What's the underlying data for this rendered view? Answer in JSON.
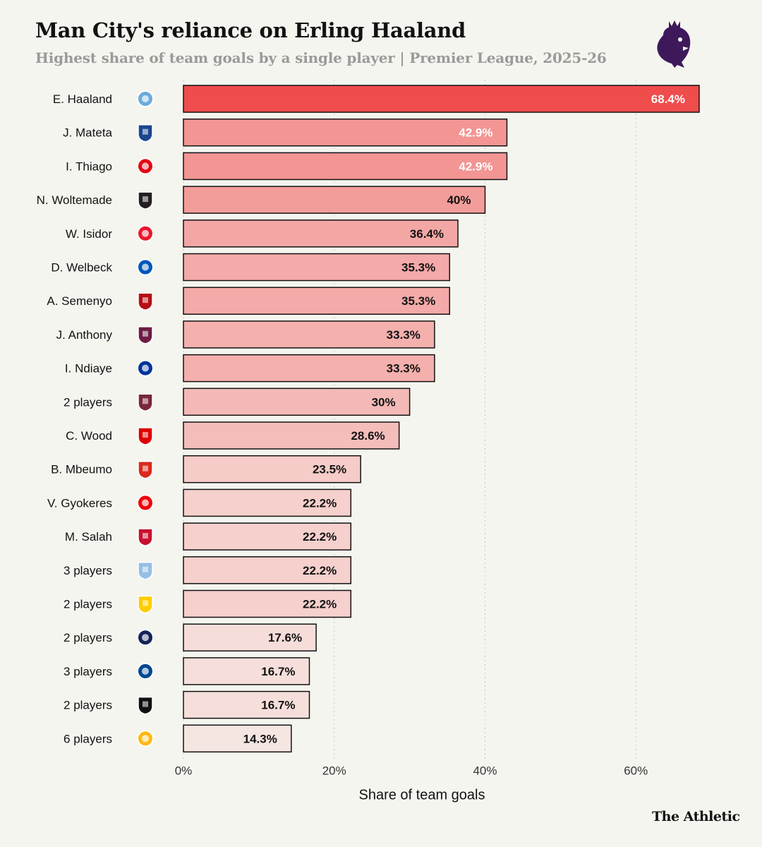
{
  "header": {
    "title": "Man City's reliance on Erling Haaland",
    "subtitle": "Highest share of team goals by a single player | Premier League, 2025-26",
    "logo_icon": "premier-league-lion-icon"
  },
  "chart_data": {
    "type": "bar",
    "orientation": "horizontal",
    "title": "Man City's reliance on Erling Haaland",
    "subtitle": "Highest share of team goals by a single player | Premier League, 2025-26",
    "xlabel": "Share of team goals",
    "ylabel": "",
    "xlim": [
      0,
      68.4
    ],
    "xticks": [
      0,
      20,
      40,
      60
    ],
    "xtick_labels": [
      "0%",
      "20%",
      "40%",
      "60%"
    ],
    "grid": "vertical dotted",
    "categories": [
      "E. Haaland",
      "J. Mateta",
      "I. Thiago",
      "N. Woltemade",
      "W. Isidor",
      "D. Welbeck",
      "A. Semenyo",
      "J. Anthony",
      "I. Ndiaye",
      "2 players",
      "C. Wood",
      "B. Mbeumo",
      "V. Gyokeres",
      "M. Salah",
      "3 players",
      "2 players",
      "2 players",
      "3 players",
      "2 players",
      "6 players"
    ],
    "values": [
      68.4,
      42.9,
      42.9,
      40,
      36.4,
      35.3,
      35.3,
      33.3,
      33.3,
      30,
      28.6,
      23.5,
      22.2,
      22.2,
      22.2,
      22.2,
      17.6,
      16.7,
      16.7,
      14.3
    ],
    "value_labels": [
      "68.4%",
      "42.9%",
      "42.9%",
      "40%",
      "36.4%",
      "35.3%",
      "35.3%",
      "33.3%",
      "33.3%",
      "30%",
      "28.6%",
      "23.5%",
      "22.2%",
      "22.2%",
      "22.2%",
      "22.2%",
      "17.6%",
      "16.7%",
      "16.7%",
      "14.3%"
    ],
    "club_icons": [
      "man-city-crest-icon",
      "crystal-palace-crest-icon",
      "brentford-crest-icon",
      "newcastle-crest-icon",
      "sunderland-crest-icon",
      "brighton-crest-icon",
      "bournemouth-crest-icon",
      "burnley-crest-icon",
      "everton-crest-icon",
      "west-ham-crest-icon",
      "nottingham-forest-crest-icon",
      "man-united-crest-icon",
      "arsenal-crest-icon",
      "liverpool-crest-icon",
      "aston-villa-crest-icon",
      "leeds-crest-icon",
      "tottenham-crest-icon",
      "chelsea-crest-icon",
      "fulham-crest-icon",
      "wolves-crest-icon"
    ],
    "club_colors": [
      "#6cabdd",
      "#1b458f",
      "#e30613",
      "#241f20",
      "#eb172b",
      "#0057b8",
      "#b50e12",
      "#6c1d45",
      "#003399",
      "#7a263a",
      "#dd0000",
      "#da291c",
      "#ef0107",
      "#c8102e",
      "#95bfe5",
      "#ffcd00",
      "#132257",
      "#034694",
      "#111111",
      "#fdb913"
    ],
    "color_scale": {
      "low": "#f6e6e2",
      "high": "#ef4c4c"
    },
    "bar_outline": "#121212"
  },
  "footer": {
    "brand": "The Athletic"
  }
}
